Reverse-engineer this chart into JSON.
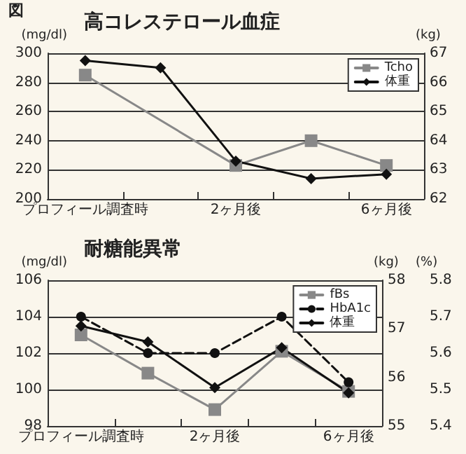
{
  "chart_data": [
    {
      "type": "line",
      "title": "高コレステロール血症",
      "annotations": [
        "図"
      ],
      "ylabel": "(mg/dl)",
      "y2label": "(kg)",
      "categories": [
        "プロフィール調査時",
        null,
        "2ヶ月後",
        null,
        "6ヶ月後"
      ],
      "series": [
        {
          "name": "Tcho",
          "color": "#888888",
          "marker": "square",
          "line_style": "solid",
          "values": [
            285,
            null,
            223,
            240,
            223
          ]
        },
        {
          "name": "体重",
          "color": "#111111",
          "marker": "diamond",
          "line_style": "solid",
          "axis": "y2",
          "values": [
            66.75,
            66.5,
            63.3,
            62.7,
            62.85
          ]
        }
      ],
      "ylim": [
        200,
        300
      ],
      "yticks": [
        200,
        220,
        240,
        260,
        280,
        300
      ],
      "y2lim": [
        62,
        67
      ],
      "y2ticks": [
        62,
        63,
        64,
        65,
        66,
        67
      ],
      "grid": "y",
      "legend": "top right"
    },
    {
      "type": "line",
      "title": "耐糖能異常",
      "ylabel": "(mg/dl)",
      "y2label": "(kg)",
      "y3label": "(%)",
      "categories": [
        "プロフィール調査時",
        null,
        "2ヶ月後",
        null,
        "6ヶ月後"
      ],
      "series": [
        {
          "name": "fBs",
          "color": "#888888",
          "marker": "square",
          "line_style": "solid",
          "values": [
            103,
            100.9,
            98.9,
            102.1,
            99.9
          ]
        },
        {
          "name": "HbA1c",
          "color": "#111111",
          "marker": "circle",
          "line_style": "dashed",
          "axis": "y3",
          "values": [
            5.7,
            5.6,
            5.6,
            5.7,
            5.52
          ]
        },
        {
          "name": "体重",
          "color": "#111111",
          "marker": "diamond",
          "line_style": "solid",
          "axis": "y2",
          "values": [
            57.06,
            56.73,
            55.79,
            56.61,
            55.68
          ]
        }
      ],
      "ylim": [
        98,
        106
      ],
      "yticks": [
        98,
        100,
        102,
        104,
        106
      ],
      "y2lim": [
        55,
        58
      ],
      "y2ticks": [
        55,
        56,
        57,
        58
      ],
      "y3lim": [
        5.4,
        5.8
      ],
      "y3ticks": [
        5.4,
        5.5,
        5.6,
        5.7,
        5.8
      ],
      "grid": "y",
      "legend": "top right"
    }
  ]
}
